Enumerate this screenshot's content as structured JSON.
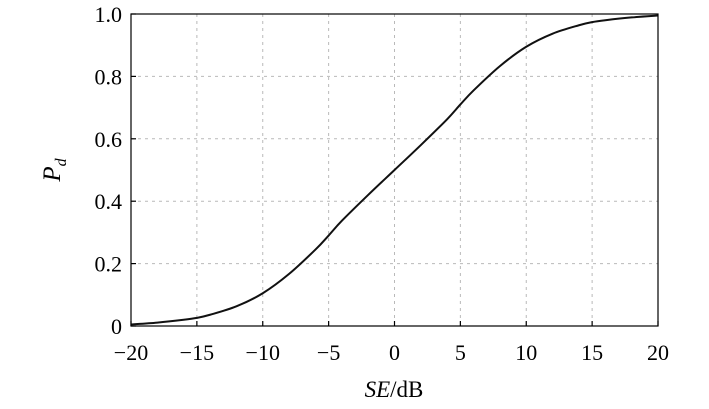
{
  "chart_data": {
    "type": "line",
    "xlabel_italic": "SE",
    "xlabel_unit": "/dB",
    "ylabel_main": "P",
    "ylabel_sub": "d",
    "xlim": [
      -20,
      20
    ],
    "ylim": [
      0,
      1
    ],
    "xticks": [
      -20,
      -15,
      -10,
      -5,
      0,
      5,
      10,
      15,
      20
    ],
    "yticks": [
      0,
      0.2,
      0.4,
      0.6,
      0.8,
      1.0
    ],
    "xtick_labels": [
      "−20",
      "−15",
      "−10",
      "−5",
      "0",
      "5",
      "10",
      "15",
      "20"
    ],
    "ytick_labels": [
      "0",
      "0.2",
      "0.4",
      "0.6",
      "0.8",
      "1.0"
    ],
    "grid": true,
    "series": [
      {
        "x": [
          -20,
          -18,
          -16,
          -15,
          -14,
          -12,
          -10,
          -8,
          -6,
          -5,
          -4,
          -2,
          0,
          2,
          4,
          5,
          6,
          8,
          10,
          12,
          14,
          15,
          16,
          18,
          20
        ],
        "y": [
          0.005,
          0.011,
          0.02,
          0.026,
          0.036,
          0.063,
          0.105,
          0.167,
          0.245,
          0.29,
          0.337,
          0.42,
          0.5,
          0.58,
          0.663,
          0.71,
          0.755,
          0.833,
          0.895,
          0.937,
          0.964,
          0.974,
          0.98,
          0.989,
          0.995
        ],
        "color": "#111111"
      }
    ]
  }
}
